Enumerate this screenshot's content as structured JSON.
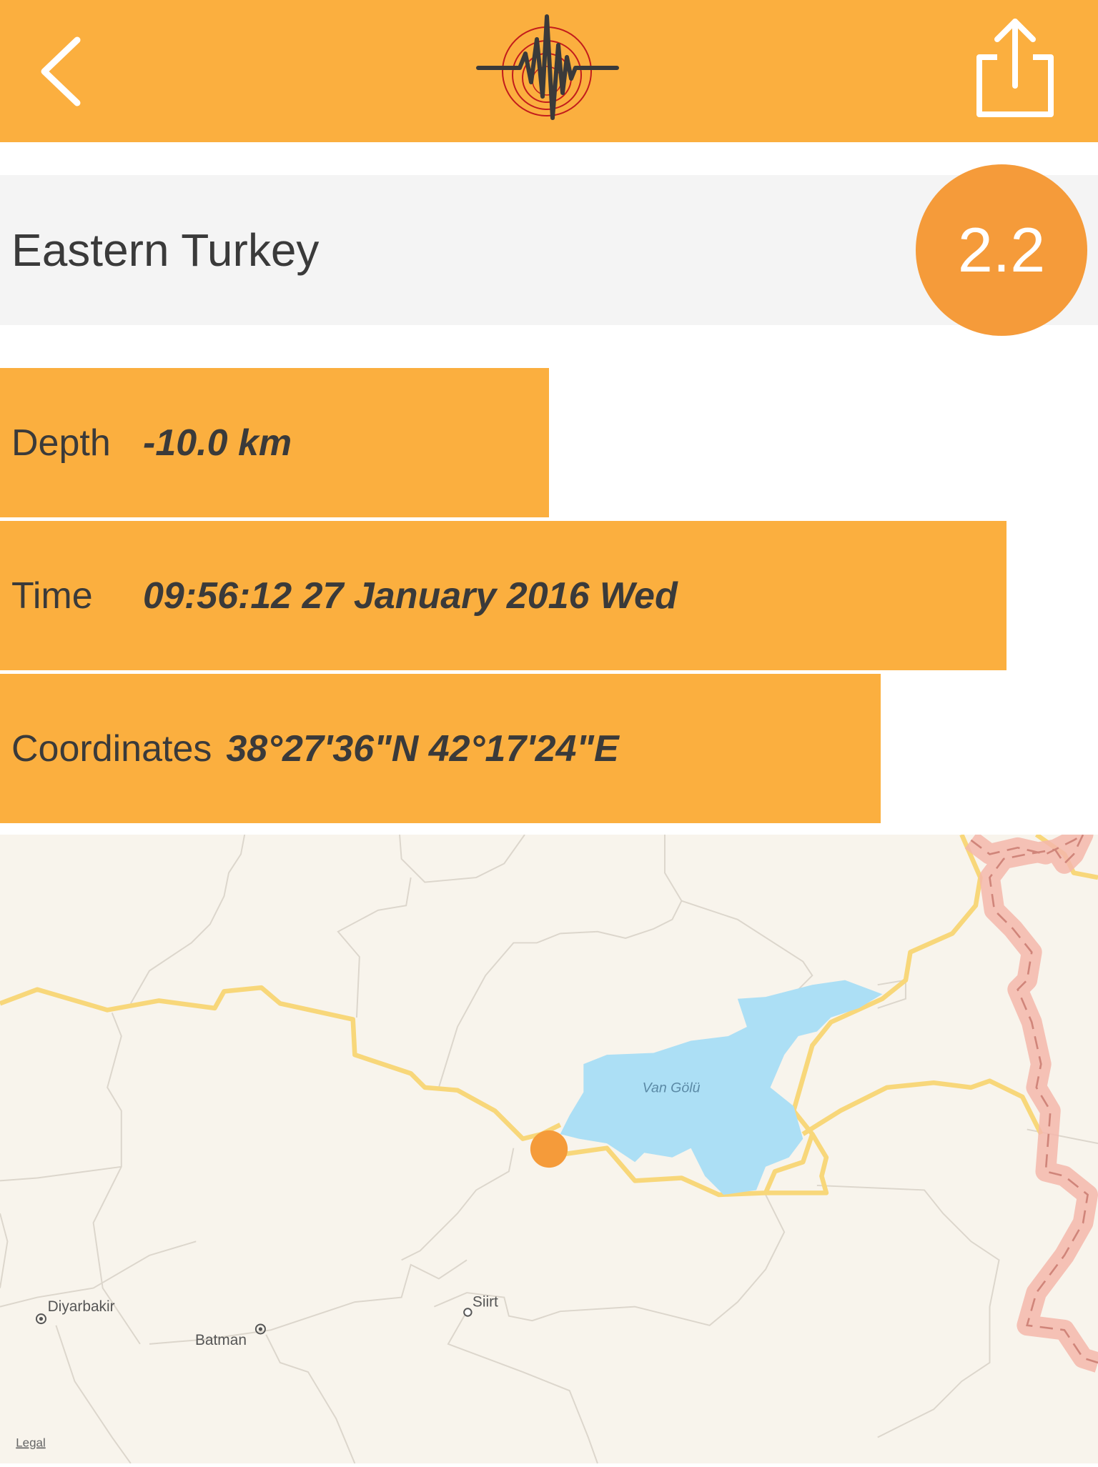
{
  "header": {
    "back_icon": "chevron-left-icon",
    "logo": "seismograph-logo",
    "share_icon": "share-icon"
  },
  "event": {
    "region": "Eastern Turkey",
    "magnitude": "2.2"
  },
  "details": {
    "depth": {
      "label": "Depth",
      "value": "-10.0 km",
      "fill": 0.5
    },
    "time": {
      "label": "Time",
      "value": "09:56:12 27 January 2016 Wed",
      "fill": 0.917
    },
    "coordinates": {
      "label": "Coordinates",
      "value": "38°27'36\"N 42°17'24\"E",
      "fill": 0.802
    }
  },
  "map": {
    "lake": "Van Gölü",
    "cities": [
      "Diyarbakir",
      "Batman",
      "Siirt"
    ],
    "legal": "Legal"
  },
  "colors": {
    "header": "#FBAF3F",
    "magnitude": "#F59B3A",
    "lake": "#ACDFF5",
    "road": "#F8D77A",
    "border": "#F5B7AC"
  }
}
